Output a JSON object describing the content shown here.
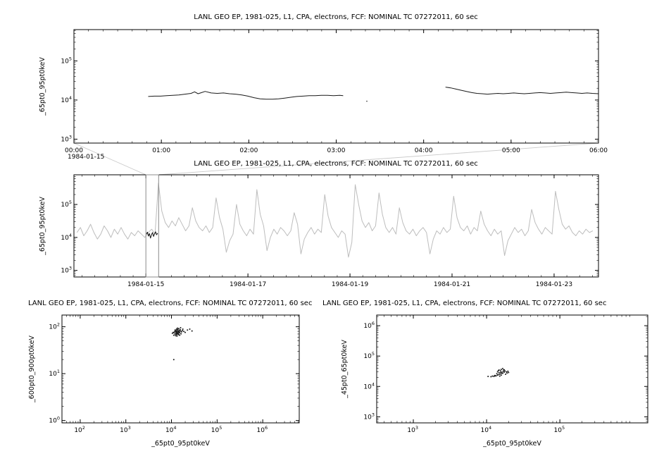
{
  "chart_data": [
    {
      "id": "panel-top-timeseries",
      "type": "line",
      "title": "LANL GEO EP, 1981-025, L1, CPA, electrons, FCF: NOMINAL TC 07272011, 60 sec",
      "ylabel": "_65pt0_95pt0keV",
      "xlabel": "",
      "x_start_label": "1984-01-15",
      "x_unit": "hours",
      "xlim": [
        0,
        6
      ],
      "x_ticks": [
        {
          "v": 0,
          "label": "00:00"
        },
        {
          "v": 1,
          "label": "01:00"
        },
        {
          "v": 2,
          "label": "02:00"
        },
        {
          "v": 3,
          "label": "03:00"
        },
        {
          "v": 4,
          "label": "04:00"
        },
        {
          "v": 5,
          "label": "05:00"
        },
        {
          "v": 6,
          "label": "06:00"
        }
      ],
      "x_minor_step": 0.1667,
      "ylog_lim": [
        2.9,
        5.8
      ],
      "y_tick_exponents": [
        3,
        4,
        5
      ],
      "series": [
        {
          "name": "flux-segment-1",
          "color": "#1a1a1a",
          "points": [
            [
              0.85,
              4.09
            ],
            [
              0.92,
              4.1
            ],
            [
              0.99,
              4.1
            ],
            [
              1.06,
              4.11
            ],
            [
              1.13,
              4.12
            ],
            [
              1.2,
              4.13
            ],
            [
              1.27,
              4.15
            ],
            [
              1.34,
              4.17
            ],
            [
              1.38,
              4.21
            ],
            [
              1.42,
              4.16
            ],
            [
              1.46,
              4.19
            ],
            [
              1.5,
              4.22
            ],
            [
              1.57,
              4.18
            ],
            [
              1.64,
              4.17
            ],
            [
              1.71,
              4.18
            ],
            [
              1.78,
              4.16
            ],
            [
              1.85,
              4.15
            ],
            [
              1.92,
              4.13
            ],
            [
              1.99,
              4.1
            ],
            [
              2.06,
              4.06
            ],
            [
              2.13,
              4.03
            ],
            [
              2.2,
              4.02
            ],
            [
              2.27,
              4.02
            ],
            [
              2.34,
              4.03
            ],
            [
              2.41,
              4.05
            ],
            [
              2.48,
              4.07
            ],
            [
              2.55,
              4.09
            ],
            [
              2.62,
              4.1
            ],
            [
              2.69,
              4.11
            ],
            [
              2.76,
              4.11
            ],
            [
              2.83,
              4.12
            ],
            [
              2.9,
              4.12
            ],
            [
              2.97,
              4.11
            ],
            [
              3.04,
              4.12
            ],
            [
              3.08,
              4.11
            ]
          ]
        },
        {
          "name": "isolated-sample",
          "color": "#555555",
          "points": [
            [
              3.35,
              3.97
            ]
          ]
        },
        {
          "name": "flux-segment-2",
          "color": "#1a1a1a",
          "points": [
            [
              4.25,
              4.33
            ],
            [
              4.31,
              4.31
            ],
            [
              4.37,
              4.28
            ],
            [
              4.43,
              4.25
            ],
            [
              4.49,
              4.22
            ],
            [
              4.55,
              4.19
            ],
            [
              4.61,
              4.17
            ],
            [
              4.67,
              4.16
            ],
            [
              4.73,
              4.15
            ],
            [
              4.79,
              4.16
            ],
            [
              4.85,
              4.17
            ],
            [
              4.91,
              4.16
            ],
            [
              4.97,
              4.17
            ],
            [
              5.03,
              4.18
            ],
            [
              5.09,
              4.17
            ],
            [
              5.15,
              4.16
            ],
            [
              5.21,
              4.17
            ],
            [
              5.27,
              4.18
            ],
            [
              5.33,
              4.19
            ],
            [
              5.39,
              4.18
            ],
            [
              5.45,
              4.17
            ],
            [
              5.51,
              4.18
            ],
            [
              5.57,
              4.19
            ],
            [
              5.63,
              4.2
            ],
            [
              5.69,
              4.19
            ],
            [
              5.75,
              4.18
            ],
            [
              5.81,
              4.17
            ],
            [
              5.87,
              4.18
            ],
            [
              5.93,
              4.17
            ],
            [
              6.0,
              4.16
            ]
          ]
        }
      ]
    },
    {
      "id": "panel-overview-timeseries",
      "type": "line",
      "title": "LANL GEO EP, 1981-025, L1, CPA, electrons, FCF: NOMINAL TC 07272011, 60 sec",
      "ylabel": "_65pt0_95pt0keV",
      "x_unit": "day-of-1984-01",
      "xlim": [
        13.59,
        23.87
      ],
      "x_ticks": [
        {
          "v": 15,
          "label": "1984-01-15"
        },
        {
          "v": 17,
          "label": "1984-01-17"
        },
        {
          "v": 19,
          "label": "1984-01-19"
        },
        {
          "v": 21,
          "label": "1984-01-21"
        },
        {
          "v": 23,
          "label": "1984-01-23"
        }
      ],
      "x_minor_step": 0.25,
      "ylog_lim": [
        2.8,
        5.9
      ],
      "y_tick_exponents": [
        3,
        4,
        5
      ],
      "series_gray": {
        "name": "overview-flux",
        "color": "#bdbdbd",
        "x0": 13.65,
        "dx": 0.0665,
        "log_values": [
          4.15,
          4.3,
          4.05,
          4.2,
          4.4,
          4.15,
          3.95,
          4.1,
          4.35,
          4.2,
          4.0,
          4.25,
          4.1,
          4.3,
          4.1,
          3.95,
          4.15,
          4.05,
          4.2,
          4.1,
          4.0,
          4.15,
          4.25,
          4.1,
          5.65,
          4.8,
          4.45,
          4.3,
          4.5,
          4.35,
          4.6,
          4.4,
          4.2,
          4.35,
          4.9,
          4.5,
          4.3,
          4.2,
          4.35,
          4.15,
          4.3,
          5.2,
          4.6,
          4.25,
          3.55,
          3.9,
          4.1,
          5.0,
          4.4,
          4.2,
          4.05,
          4.25,
          4.1,
          5.45,
          4.7,
          4.35,
          3.6,
          4.0,
          4.25,
          4.1,
          4.3,
          4.2,
          4.05,
          4.2,
          4.75,
          4.4,
          3.5,
          3.95,
          4.15,
          4.3,
          4.1,
          4.25,
          4.15,
          5.3,
          4.65,
          4.3,
          4.15,
          4.0,
          4.2,
          4.1,
          3.4,
          3.85,
          5.6,
          5.0,
          4.5,
          4.3,
          4.45,
          4.2,
          4.35,
          5.35,
          4.7,
          4.3,
          4.15,
          4.3,
          4.1,
          4.9,
          4.45,
          4.2,
          4.1,
          4.25,
          4.05,
          4.2,
          4.3,
          4.15,
          3.5,
          3.95,
          4.2,
          4.1,
          4.3,
          4.15,
          4.25,
          5.25,
          4.6,
          4.3,
          4.2,
          4.35,
          4.1,
          4.3,
          4.2,
          4.8,
          4.4,
          4.2,
          4.05,
          4.25,
          4.1,
          4.2,
          3.45,
          3.9,
          4.1,
          4.3,
          4.15,
          4.25,
          4.05,
          4.2,
          4.85,
          4.45,
          4.25,
          4.1,
          4.3,
          4.2,
          4.1,
          5.4,
          4.85,
          4.4,
          4.25,
          4.35,
          4.15,
          4.05,
          4.2,
          4.1,
          4.25,
          4.15,
          4.2
        ]
      },
      "series_black": {
        "name": "zoom-window-flux",
        "color": "#111111",
        "points": [
          [
            15.01,
            4.1
          ],
          [
            15.03,
            4.16
          ],
          [
            15.05,
            4.04
          ],
          [
            15.07,
            4.12
          ],
          [
            15.09,
            3.98
          ],
          [
            15.11,
            4.08
          ],
          [
            15.13,
            4.15
          ],
          [
            15.15,
            4.03
          ],
          [
            15.17,
            4.11
          ],
          [
            15.19,
            4.17
          ],
          [
            15.21,
            4.08
          ],
          [
            15.23,
            4.13
          ]
        ]
      },
      "zoom_box": {
        "x_from": 15.0,
        "x_to": 15.25,
        "color": "#8c8c8c",
        "connector_color": "#c9c9c9"
      }
    },
    {
      "id": "panel-scatter-left",
      "type": "scatter",
      "title": "LANL GEO EP, 1981-025, L1, CPA, electrons, FCF: NOMINAL TC 07272011, 60 sec",
      "xlabel": "_65pt0_95pt0keV",
      "ylabel": "_600pt0_900pt0keV",
      "xlog_lim": [
        1.6,
        6.8
      ],
      "x_tick_exponents": [
        2,
        3,
        4,
        5,
        6
      ],
      "ylog_lim": [
        -0.05,
        2.25
      ],
      "y_tick_exponents": [
        0,
        1,
        2
      ],
      "point_color": "#1a1a1a",
      "points_log": [
        [
          4.1,
          1.86
        ],
        [
          4.14,
          1.9
        ],
        [
          4.08,
          1.84
        ],
        [
          4.17,
          1.92
        ],
        [
          4.12,
          1.88
        ],
        [
          4.05,
          1.82
        ],
        [
          4.2,
          1.91
        ],
        [
          4.11,
          1.95
        ],
        [
          4.15,
          1.85
        ],
        [
          4.09,
          1.89
        ],
        [
          4.18,
          1.87
        ],
        [
          4.13,
          1.93
        ],
        [
          4.07,
          1.9
        ],
        [
          4.16,
          1.83
        ],
        [
          4.12,
          1.8
        ],
        [
          4.22,
          1.89
        ],
        [
          4.1,
          1.92
        ],
        [
          4.14,
          1.86
        ],
        [
          4.19,
          1.94
        ],
        [
          4.06,
          1.87
        ],
        [
          4.11,
          1.84
        ],
        [
          4.16,
          1.91
        ],
        [
          4.13,
          1.97
        ],
        [
          4.08,
          1.93
        ],
        [
          4.21,
          1.85
        ],
        [
          4.12,
          1.9
        ],
        [
          4.15,
          1.88
        ],
        [
          4.09,
          1.81
        ],
        [
          4.17,
          1.89
        ],
        [
          4.11,
          1.87
        ],
        [
          4.24,
          1.92
        ],
        [
          4.04,
          1.88
        ],
        [
          4.14,
          1.94
        ],
        [
          4.18,
          1.82
        ],
        [
          4.1,
          1.9
        ],
        [
          4.13,
          1.85
        ],
        [
          4.27,
          1.9
        ],
        [
          4.02,
          1.86
        ],
        [
          4.16,
          1.96
        ],
        [
          4.12,
          1.83
        ],
        [
          4.3,
          1.88
        ],
        [
          4.2,
          1.98
        ],
        [
          4.25,
          1.95
        ],
        [
          4.35,
          1.93
        ],
        [
          4.4,
          1.95
        ],
        [
          4.45,
          1.91
        ],
        [
          4.05,
          1.3
        ]
      ]
    },
    {
      "id": "panel-scatter-right",
      "type": "scatter",
      "title": "LANL GEO EP, 1981-025, L1, CPA, electrons, FCF: NOMINAL TC 07272011, 60 sec",
      "xlabel": "_65pt0_95pt0keV",
      "ylabel": "_45pt0_65pt0keV",
      "xlog_lim": [
        2.5,
        6.2
      ],
      "x_tick_exponents": [
        3,
        4,
        5
      ],
      "ylog_lim": [
        2.8,
        6.35
      ],
      "y_tick_exponents": [
        3,
        4,
        5,
        6
      ],
      "point_color": "#1a1a1a",
      "points_log": [
        [
          4.12,
          4.35
        ],
        [
          4.15,
          4.37
        ],
        [
          4.18,
          4.4
        ],
        [
          4.2,
          4.43
        ],
        [
          4.21,
          4.47
        ],
        [
          4.19,
          4.51
        ],
        [
          4.17,
          4.54
        ],
        [
          4.2,
          4.56
        ],
        [
          4.23,
          4.54
        ],
        [
          4.25,
          4.51
        ],
        [
          4.24,
          4.47
        ],
        [
          4.22,
          4.43
        ],
        [
          4.26,
          4.4
        ],
        [
          4.28,
          4.44
        ],
        [
          4.27,
          4.48
        ],
        [
          4.24,
          4.55
        ],
        [
          4.22,
          4.59
        ],
        [
          4.18,
          4.34
        ],
        [
          4.1,
          4.33
        ],
        [
          4.06,
          4.32
        ],
        [
          4.02,
          4.33
        ],
        [
          4.08,
          4.34
        ],
        [
          4.13,
          4.35
        ],
        [
          4.16,
          4.39
        ],
        [
          4.11,
          4.36
        ],
        [
          4.3,
          4.46
        ],
        [
          4.29,
          4.5
        ],
        [
          4.17,
          4.45
        ],
        [
          4.15,
          4.48
        ],
        [
          4.2,
          4.37
        ],
        [
          4.14,
          4.42
        ],
        [
          4.19,
          4.46
        ],
        [
          4.23,
          4.49
        ],
        [
          4.16,
          4.52
        ]
      ]
    }
  ]
}
